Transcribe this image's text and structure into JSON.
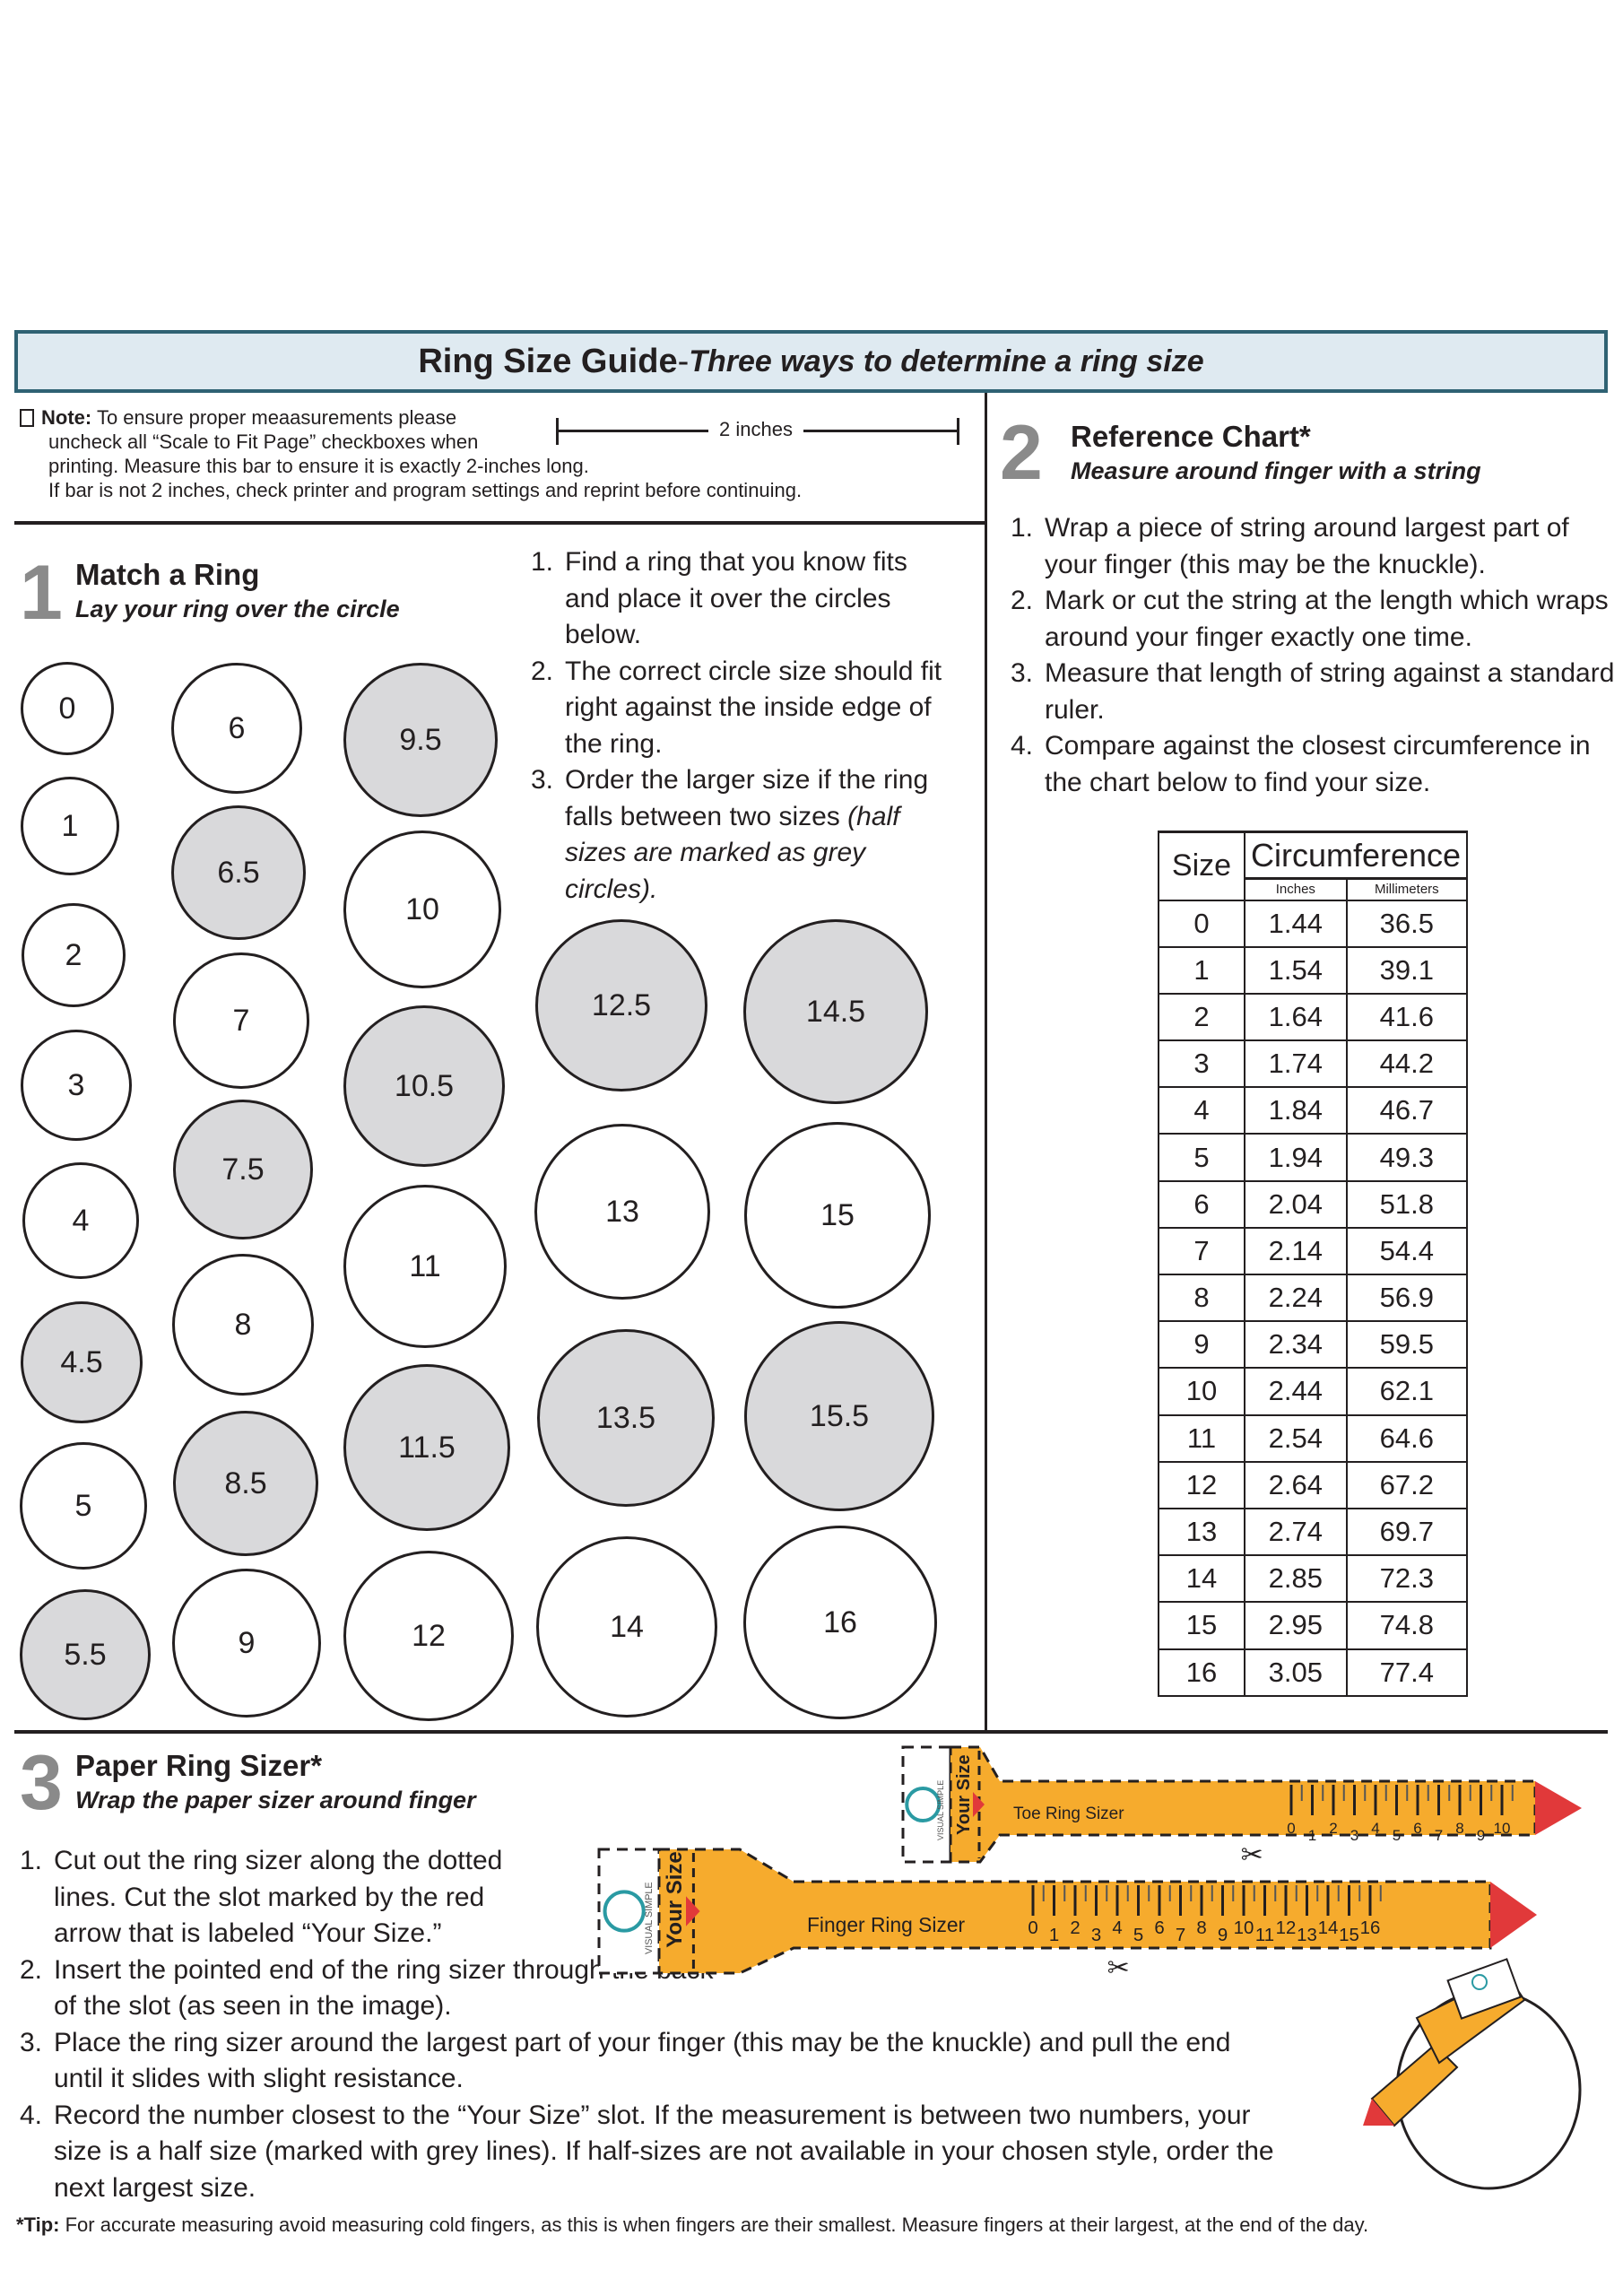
{
  "header": {
    "title": "Ring Size Guide",
    "separator": " - ",
    "subtitle": "Three ways to determine a ring size"
  },
  "note": {
    "label": "Note:",
    "lines": [
      "To ensure proper meaasurements please",
      "uncheck all “Scale to Fit Page” checkboxes when",
      "printing. Measure this bar to ensure it is exactly 2-inches long.",
      "If bar is not 2 inches, check printer and program settings and reprint before continuing."
    ],
    "bar_label": "2 inches",
    "icon": "document-icon"
  },
  "section1": {
    "number": "1",
    "title": "Match a Ring",
    "subtitle": "Lay your ring over the circle",
    "steps": [
      {
        "n": "1.",
        "text": "Find a ring that you know fits and place it over the circles below."
      },
      {
        "n": "2.",
        "text": "The correct circle size should fit right against the inside edge of the ring."
      },
      {
        "n": "3.",
        "text": "Order the larger size if the ring falls between two sizes",
        "italic": "(half sizes are marked as grey circles)."
      }
    ],
    "circles": [
      "0",
      "1",
      "2",
      "3",
      "4",
      "4.5",
      "5",
      "5.5",
      "6",
      "6.5",
      "7",
      "7.5",
      "8",
      "8.5",
      "9",
      "9.5",
      "10",
      "10.5",
      "11",
      "11.5",
      "12",
      "12.5",
      "13",
      "13.5",
      "14",
      "14.5",
      "15",
      "15.5",
      "16"
    ],
    "half_color": "#d9d9db"
  },
  "section2": {
    "number": "2",
    "title": "Reference Chart*",
    "subtitle": "Measure around finger with a string",
    "steps": [
      {
        "n": "1.",
        "text": "Wrap a piece of string around largest part of your finger (this may be the knuckle)."
      },
      {
        "n": "2.",
        "text": "Mark or cut the string at the length which wraps around your finger exactly one time."
      },
      {
        "n": "3.",
        "text": "Measure that length of string against a standard ruler."
      },
      {
        "n": "4.",
        "text": "Compare against the closest circumference in the chart below to find your size."
      }
    ],
    "table": {
      "headers": {
        "size": "Size",
        "circ": "Circumference",
        "inches": "Inches",
        "mm": "Millimeters"
      },
      "rows": [
        [
          "0",
          "1.44",
          "36.5"
        ],
        [
          "1",
          "1.54",
          "39.1"
        ],
        [
          "2",
          "1.64",
          "41.6"
        ],
        [
          "3",
          "1.74",
          "44.2"
        ],
        [
          "4",
          "1.84",
          "46.7"
        ],
        [
          "5",
          "1.94",
          "49.3"
        ],
        [
          "6",
          "2.04",
          "51.8"
        ],
        [
          "7",
          "2.14",
          "54.4"
        ],
        [
          "8",
          "2.24",
          "56.9"
        ],
        [
          "9",
          "2.34",
          "59.5"
        ],
        [
          "10",
          "2.44",
          "62.1"
        ],
        [
          "11",
          "2.54",
          "64.6"
        ],
        [
          "12",
          "2.64",
          "67.2"
        ],
        [
          "13",
          "2.74",
          "69.7"
        ],
        [
          "14",
          "2.85",
          "72.3"
        ],
        [
          "15",
          "2.95",
          "74.8"
        ],
        [
          "16",
          "3.05",
          "77.4"
        ]
      ]
    }
  },
  "section3": {
    "number": "3",
    "title": "Paper Ring Sizer*",
    "subtitle": "Wrap the paper sizer around finger",
    "steps": [
      {
        "n": "1.",
        "text": "Cut out the ring sizer along the dotted lines. Cut the slot marked by the red arrow that is labeled “Your Size.”"
      },
      {
        "n": "2.",
        "text": "Insert the pointed end of the ring sizer through the back of the slot (as seen in the image)."
      },
      {
        "n": "3.",
        "text": "Place the ring sizer around the largest part of your finger (this may be the knuckle) and pull the end until it slides with slight resistance."
      },
      {
        "n": "4.",
        "text": "Record the number closest to the “Your Size” slot. If the measurement is between two numbers, your size is a half size (marked with grey lines). If half-sizes are not available in your chosen style, order the next largest size."
      }
    ],
    "toe_sizer": {
      "label": "Toe Ring Sizer",
      "slot": "Your Size",
      "brand": "VISUAL SIMPLE",
      "ticks": [
        "0",
        "1",
        "2",
        "3",
        "4",
        "5",
        "6",
        "7",
        "8",
        "9",
        "10"
      ]
    },
    "finger_sizer": {
      "label": "Finger Ring Sizer",
      "slot": "Your Size",
      "brand": "VISUAL SIMPLE",
      "ticks": [
        "0",
        "1",
        "2",
        "3",
        "4",
        "5",
        "6",
        "7",
        "8",
        "9",
        "10",
        "11",
        "12",
        "13",
        "14",
        "15",
        "16"
      ]
    },
    "colors": {
      "sizer": "#f6ab2d",
      "arrow": "#e1393a",
      "logo": "#2a9aa3"
    }
  },
  "tip": {
    "label": "*Tip:",
    "text": " For accurate measuring avoid measuring cold fingers, as this is when fingers are their smallest. Measure fingers at their largest, at the end of the day."
  }
}
